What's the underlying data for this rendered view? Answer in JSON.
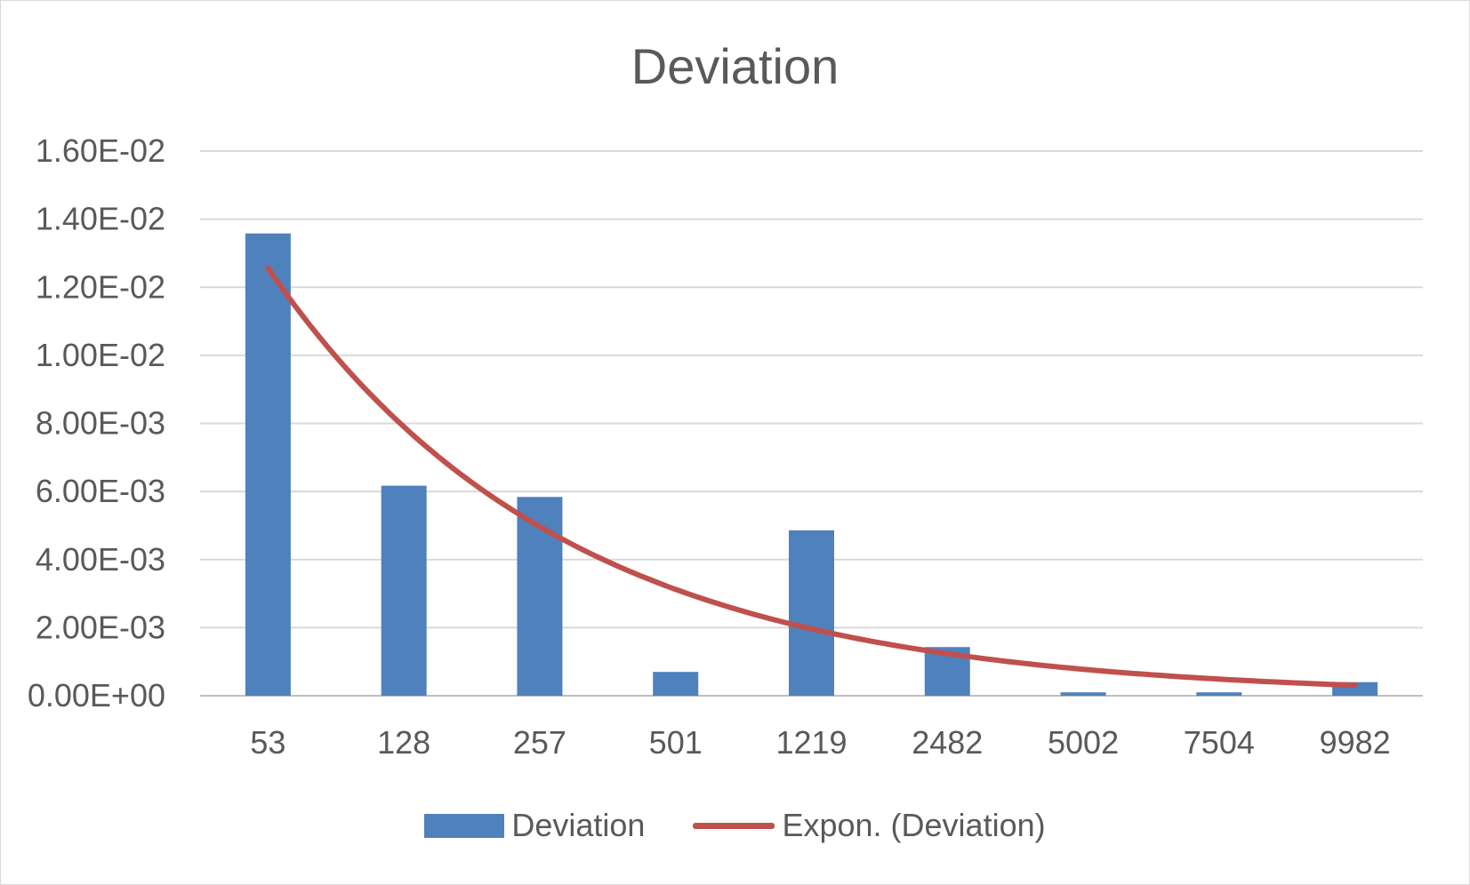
{
  "chart_data": {
    "type": "bar",
    "title": "Deviation",
    "xlabel": "",
    "ylabel": "",
    "categories": [
      "53",
      "128",
      "257",
      "501",
      "1219",
      "2482",
      "5002",
      "7504",
      "9982"
    ],
    "series": [
      {
        "name": "Deviation",
        "type": "bar",
        "color": "#4f81bd",
        "values": [
          0.01358,
          0.00617,
          0.00584,
          0.0007,
          0.00486,
          0.00143,
          0.0001,
          0.0001,
          0.0004
        ]
      },
      {
        "name": "Expon. (Deviation)",
        "type": "trendline-exponential",
        "color": "#c0504d",
        "a": 0.01997,
        "b": 0.4637
      }
    ],
    "ylim": [
      0,
      0.016
    ],
    "yticks": [
      "0.00E+00",
      "2.00E-03",
      "4.00E-03",
      "6.00E-03",
      "8.00E-03",
      "1.00E-02",
      "1.20E-02",
      "1.40E-02",
      "1.60E-02"
    ],
    "ytick_values": [
      0,
      0.002,
      0.004,
      0.006,
      0.008,
      0.01,
      0.012,
      0.014,
      0.016
    ],
    "grid": true,
    "legend_position": "bottom"
  }
}
